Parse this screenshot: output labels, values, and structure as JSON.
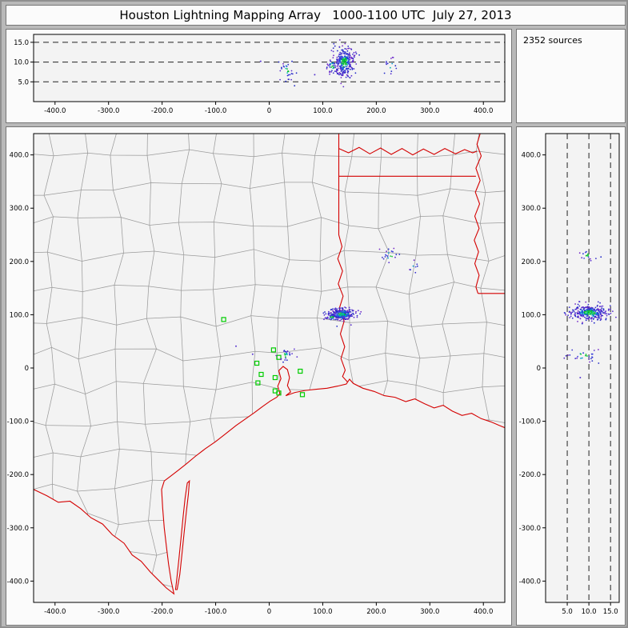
{
  "title": "Houston Lightning Mapping Array   1000-1100 UTC  July 27, 2013",
  "sources_label": "2352 sources",
  "palette": {
    "border_red": "#d40000",
    "county_gray": "#9b9b9b",
    "station_green": "#00cc00",
    "dash_black": "#222222",
    "plot_bg": "#f3f3f3",
    "core": [
      "#00c028",
      "#00b4b4",
      "#20c840"
    ],
    "mid": [
      "#2830d8",
      "#0098d0",
      "#4048e0",
      "#3038d8"
    ],
    "outer": [
      "#2028c8",
      "#7428c8",
      "#3830cc",
      "#5a30d0"
    ],
    "single": "#5838d0"
  },
  "chart_data": [
    {
      "id": "alt_vs_ew",
      "type": "scatter",
      "x_range": [
        -440,
        440
      ],
      "y_range": [
        0,
        17
      ],
      "x_ticks": [
        -400,
        -300,
        -200,
        -100,
        0,
        100,
        200,
        300,
        400
      ],
      "x_tick_labels": [
        "-400.0",
        "-300.0",
        "-200.0",
        "-100.0",
        "0",
        "100.0",
        "200.0",
        "300.0",
        "400.0"
      ],
      "y_ticks": [
        15,
        10,
        5
      ],
      "y_tick_labels": [
        "15.0",
        "10.0",
        "5.0"
      ],
      "dashed_y": [
        5,
        10,
        15
      ],
      "seed": 11,
      "clusters": [
        {
          "cx": 140,
          "cy": 10.0,
          "sx": 9,
          "sy": 2.0,
          "n": 300
        },
        {
          "cx": 118,
          "cy": 9.0,
          "sx": 5,
          "sy": 1.2,
          "n": 30
        },
        {
          "cx": 32,
          "cy": 7.6,
          "sx": 8,
          "sy": 1.6,
          "n": 30
        },
        {
          "cx": 226,
          "cy": 9.2,
          "sx": 6,
          "sy": 1.2,
          "n": 14
        }
      ],
      "singles": [
        [
          -16,
          10.2
        ],
        [
          85,
          6.8
        ]
      ]
    },
    {
      "id": "plan_view",
      "type": "scatter_map",
      "x_range": [
        -440,
        440
      ],
      "y_range": [
        -440,
        440
      ],
      "x_ticks": [
        -400,
        -300,
        -200,
        -100,
        0,
        100,
        200,
        300,
        400
      ],
      "x_tick_labels": [
        "-400.0",
        "-300.0",
        "-200.0",
        "-100.0",
        "0",
        "100.0",
        "200.0",
        "300.0",
        "400.0"
      ],
      "y_ticks": [
        400,
        300,
        200,
        100,
        0,
        -100,
        -200,
        -300,
        -400
      ],
      "y_tick_labels": [
        "400.0",
        "300.0",
        "200.0",
        "100.0",
        "0",
        "-100.0",
        "-200.0",
        "-300.0",
        "-400.0"
      ],
      "seed": 7,
      "mesh": {
        "cell": 62,
        "jitter": 13,
        "seed": 5
      },
      "stations": [
        [
          -85,
          91
        ],
        [
          8,
          34
        ],
        [
          18,
          20
        ],
        [
          -23,
          9
        ],
        [
          -15,
          -12
        ],
        [
          11,
          -18
        ],
        [
          -21,
          -28
        ],
        [
          58,
          -6
        ],
        [
          11,
          -43
        ],
        [
          18,
          -47
        ],
        [
          62,
          -50
        ]
      ],
      "clusters": [
        {
          "cx": 136,
          "cy": 101,
          "sx": 11,
          "sy": 6,
          "n": 300
        },
        {
          "cx": 117,
          "cy": 96,
          "sx": 7,
          "sy": 4,
          "n": 36
        },
        {
          "cx": 31,
          "cy": 24,
          "sx": 8,
          "sy": 6,
          "n": 26
        },
        {
          "cx": 226,
          "cy": 212,
          "sx": 9,
          "sy": 7,
          "n": 20
        },
        {
          "cx": 268,
          "cy": 188,
          "sx": 6,
          "sy": 5,
          "n": 8
        }
      ],
      "singles": [
        [
          -62,
          41
        ],
        [
          -31,
          26
        ]
      ],
      "borders": {
        "south": [
          [
            -440,
            -228
          ],
          [
            -415,
            -240
          ],
          [
            -394,
            -252
          ],
          [
            -372,
            -250
          ],
          [
            -352,
            -264
          ],
          [
            -333,
            -281
          ],
          [
            -311,
            -293
          ],
          [
            -293,
            -313
          ],
          [
            -271,
            -329
          ],
          [
            -256,
            -351
          ],
          [
            -239,
            -363
          ],
          [
            -222,
            -383
          ],
          [
            -206,
            -399
          ],
          [
            -192,
            -413
          ],
          [
            -178,
            -424
          ],
          [
            -183,
            -400
          ],
          [
            -188,
            -368
          ],
          [
            -192,
            -335
          ],
          [
            -196,
            -300
          ],
          [
            -199,
            -262
          ],
          [
            -201,
            -228
          ],
          [
            -196,
            -212
          ],
          [
            -184,
            -203
          ],
          [
            -170,
            -192
          ],
          [
            -155,
            -180
          ],
          [
            -138,
            -166
          ],
          [
            -120,
            -152
          ],
          [
            -100,
            -138
          ],
          [
            -82,
            -124
          ],
          [
            -62,
            -108
          ],
          [
            -45,
            -96
          ],
          [
            -28,
            -84
          ],
          [
            -12,
            -72
          ],
          [
            2,
            -62
          ],
          [
            14,
            -55
          ],
          [
            20,
            -48
          ],
          [
            16,
            -34
          ],
          [
            22,
            -20
          ],
          [
            18,
            -5
          ],
          [
            26,
            3
          ],
          [
            34,
            -3
          ],
          [
            38,
            -18
          ],
          [
            34,
            -33
          ],
          [
            40,
            -45
          ],
          [
            31,
            -52
          ],
          [
            48,
            -46
          ],
          [
            68,
            -42
          ],
          [
            88,
            -40
          ],
          [
            108,
            -38
          ],
          [
            128,
            -34
          ],
          [
            144,
            -30
          ],
          [
            150,
            -21
          ],
          [
            157,
            -29
          ],
          [
            175,
            -38
          ],
          [
            196,
            -44
          ],
          [
            215,
            -52
          ],
          [
            235,
            -55
          ],
          [
            255,
            -63
          ],
          [
            272,
            -58
          ],
          [
            290,
            -67
          ],
          [
            308,
            -75
          ],
          [
            325,
            -70
          ],
          [
            342,
            -81
          ],
          [
            360,
            -89
          ],
          [
            378,
            -85
          ],
          [
            396,
            -95
          ],
          [
            414,
            -101
          ],
          [
            430,
            -108
          ],
          [
            440,
            -112
          ]
        ],
        "island": [
          [
            -172,
            -416
          ],
          [
            -167,
            -388
          ],
          [
            -163,
            -350
          ],
          [
            -159,
            -310
          ],
          [
            -155,
            -272
          ],
          [
            -151,
            -238
          ],
          [
            -149,
            -212
          ],
          [
            -153,
            -216
          ],
          [
            -157,
            -244
          ],
          [
            -161,
            -282
          ],
          [
            -165,
            -322
          ],
          [
            -169,
            -362
          ],
          [
            -173,
            -400
          ],
          [
            -175,
            -416
          ],
          [
            -172,
            -416
          ]
        ],
        "tx_la": [
          [
            130,
            440
          ],
          [
            130,
            250
          ],
          [
            136,
            228
          ],
          [
            128,
            205
          ],
          [
            137,
            182
          ],
          [
            129,
            158
          ],
          [
            138,
            135
          ],
          [
            131,
            112
          ],
          [
            140,
            88
          ],
          [
            133,
            64
          ],
          [
            141,
            40
          ],
          [
            134,
            18
          ],
          [
            142,
            -4
          ],
          [
            137,
            -16
          ],
          [
            146,
            -26
          ]
        ],
        "red_river": [
          [
            130,
            412
          ],
          [
            148,
            404
          ],
          [
            168,
            414
          ],
          [
            188,
            402
          ],
          [
            208,
            413
          ],
          [
            228,
            401
          ],
          [
            248,
            412
          ],
          [
            268,
            400
          ],
          [
            288,
            411
          ],
          [
            308,
            401
          ],
          [
            328,
            412
          ],
          [
            348,
            402
          ],
          [
            365,
            410
          ],
          [
            380,
            404
          ],
          [
            388,
            407
          ]
        ],
        "la_ar": [
          [
            130,
            360
          ],
          [
            386,
            360
          ]
        ],
        "mississippi": [
          [
            394,
            440
          ],
          [
            388,
            420
          ],
          [
            396,
            398
          ],
          [
            386,
            375
          ],
          [
            394,
            352
          ],
          [
            385,
            330
          ],
          [
            393,
            308
          ],
          [
            384,
            285
          ],
          [
            392,
            262
          ],
          [
            383,
            240
          ],
          [
            391,
            218
          ],
          [
            384,
            196
          ],
          [
            392,
            174
          ],
          [
            386,
            152
          ],
          [
            390,
            140
          ]
        ],
        "ms_31n": [
          [
            390,
            140
          ],
          [
            440,
            140
          ]
        ]
      }
    },
    {
      "id": "alt_vs_ns",
      "type": "scatter",
      "x_range": [
        0,
        17
      ],
      "y_range": [
        -440,
        440
      ],
      "x_ticks": [
        5,
        10,
        15
      ],
      "x_tick_labels": [
        "5.0",
        "10.0",
        "15.0"
      ],
      "y_ticks": [
        400,
        300,
        200,
        100,
        0,
        -100,
        -200,
        -300,
        -400
      ],
      "y_tick_labels": [
        "400.0",
        "300.0",
        "200.0",
        "100.0",
        "0",
        "-100.0",
        "-200.0",
        "-300.0",
        "-400.0"
      ],
      "dashed_x": [
        5,
        10,
        15
      ],
      "seed": 23,
      "clusters": [
        {
          "cx": 10.2,
          "cy": 104,
          "sx": 2.2,
          "sy": 7,
          "n": 300
        },
        {
          "cx": 8.8,
          "cy": 24,
          "sx": 2.2,
          "sy": 6,
          "n": 28
        },
        {
          "cx": 9.5,
          "cy": 212,
          "sx": 1.5,
          "sy": 6,
          "n": 16
        }
      ],
      "singles": [
        [
          8,
          -18
        ]
      ]
    }
  ]
}
